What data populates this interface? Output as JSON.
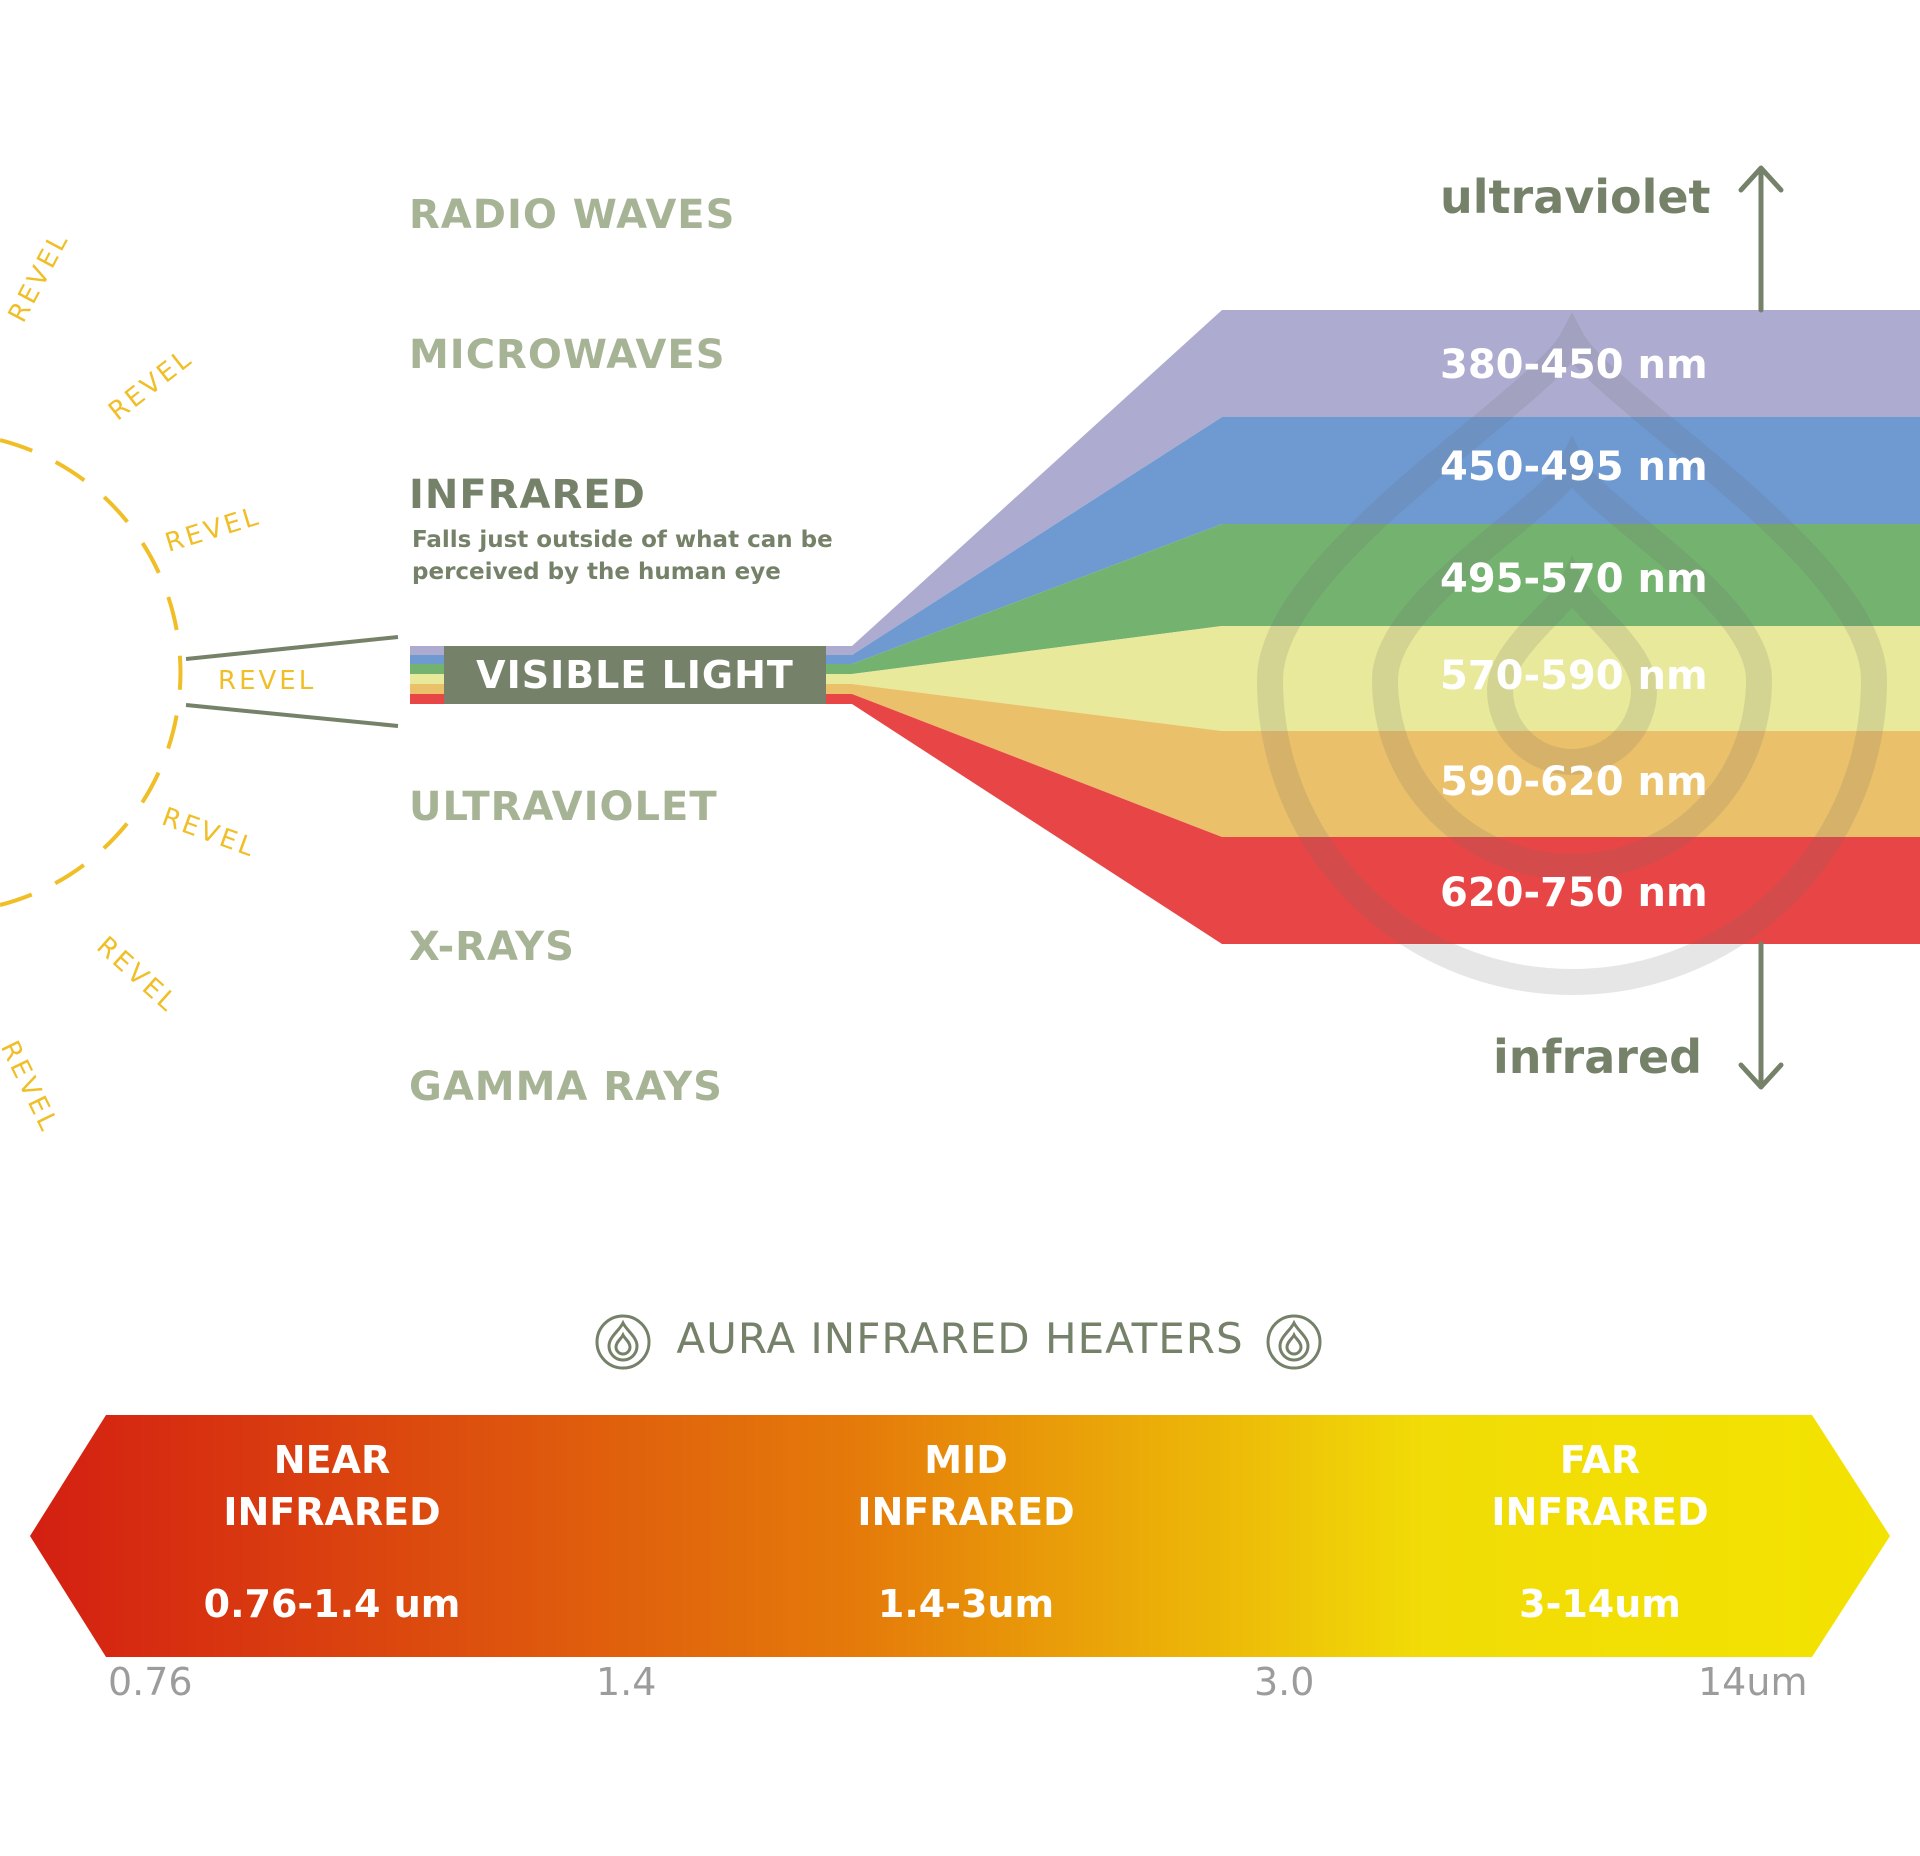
{
  "spectrum": {
    "bands": [
      {
        "label": "RADIO WAVES",
        "active": false
      },
      {
        "label": "MICROWAVES",
        "active": false
      },
      {
        "label": "INFRARED",
        "active": true
      },
      {
        "label": "ULTRAVIOLET",
        "active": false
      },
      {
        "label": "X-RAYS",
        "active": false
      },
      {
        "label": "GAMMA RAYS",
        "active": false
      }
    ],
    "infrared_description": "Falls just outside of what can be perceived by the human eye",
    "visible_light_label": "VISIBLE LIGHT"
  },
  "visible_bands": [
    {
      "range": "380-450 nm",
      "color": "#adacd0"
    },
    {
      "range": "450-495 nm",
      "color": "#6e99d1"
    },
    {
      "range": "495-570 nm",
      "color": "#74b26f"
    },
    {
      "range": "570-590 nm",
      "color": "#e8e99a"
    },
    {
      "range": "590-620 nm",
      "color": "#ebc06b"
    },
    {
      "range": "620-750 nm",
      "color": "#e84646"
    }
  ],
  "axis": {
    "top": "ultraviolet",
    "bottom": "infrared"
  },
  "revel": {
    "text": "REVEL",
    "color": "#f0bf27"
  },
  "heaters": {
    "title": "AURA INFRARED HEATERS",
    "segments": [
      {
        "name_line1": "NEAR",
        "name_line2": "INFRARED",
        "range": "0.76-1.4 um"
      },
      {
        "name_line1": "MID",
        "name_line2": "INFRARED",
        "range": "1.4-3um"
      },
      {
        "name_line1": "FAR",
        "name_line2": "INFRARED",
        "range": "3-14um"
      }
    ],
    "ticks": [
      "0.76",
      "1.4",
      "3.0",
      "14um"
    ],
    "gradient_colors": [
      "#d41f12",
      "#e57c0a",
      "#f1dc07"
    ]
  },
  "colors": {
    "accent": "#758169",
    "muted": "#a7b395"
  }
}
